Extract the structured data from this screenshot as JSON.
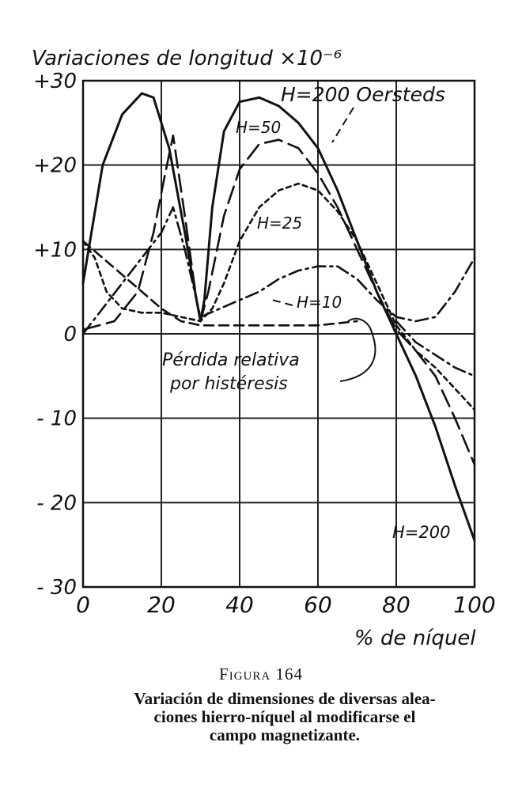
{
  "chart_data": {
    "type": "line",
    "ylabel": "Variaciones de longitud ×10⁻⁶",
    "xlabel": "% de níquel",
    "xlim": [
      0,
      100
    ],
    "ylim": [
      -30,
      30
    ],
    "x_ticks": [
      0,
      20,
      40,
      60,
      80,
      100
    ],
    "y_ticks": [
      30,
      20,
      10,
      0,
      -10,
      -20,
      -30
    ],
    "y_tick_labels": [
      "+30",
      "+20",
      "+10",
      "0",
      "- 10",
      "- 20",
      "- 30"
    ],
    "grid": true,
    "series": [
      {
        "name": "H=200 Oersteds",
        "style": "solid",
        "points": [
          [
            0,
            6
          ],
          [
            5,
            20
          ],
          [
            10,
            26
          ],
          [
            15,
            28.5
          ],
          [
            18,
            28
          ],
          [
            22,
            22
          ],
          [
            26,
            12
          ],
          [
            29,
            4
          ],
          [
            30,
            1.5
          ],
          [
            31,
            4
          ],
          [
            33,
            15
          ],
          [
            36,
            24
          ],
          [
            40,
            27.5
          ],
          [
            45,
            28
          ],
          [
            50,
            27
          ],
          [
            55,
            25
          ],
          [
            60,
            22
          ],
          [
            65,
            17
          ],
          [
            70,
            11
          ],
          [
            75,
            5
          ],
          [
            80,
            0
          ],
          [
            85,
            -5
          ],
          [
            90,
            -11
          ],
          [
            95,
            -18
          ],
          [
            100,
            -24.5
          ]
        ]
      },
      {
        "name": "H=50",
        "style": "long-dash",
        "points": [
          [
            0,
            0.5
          ],
          [
            8,
            1.5
          ],
          [
            14,
            5
          ],
          [
            18,
            12
          ],
          [
            21,
            19
          ],
          [
            23,
            23.5
          ],
          [
            26,
            14
          ],
          [
            29,
            4
          ],
          [
            30,
            1.5
          ],
          [
            32,
            5
          ],
          [
            36,
            14
          ],
          [
            40,
            19.5
          ],
          [
            45,
            22.5
          ],
          [
            50,
            23
          ],
          [
            55,
            22
          ],
          [
            60,
            19
          ],
          [
            65,
            15
          ],
          [
            70,
            10
          ],
          [
            75,
            5
          ],
          [
            80,
            0.5
          ],
          [
            85,
            -2
          ],
          [
            90,
            -5
          ],
          [
            95,
            -10
          ],
          [
            100,
            -15.5
          ]
        ]
      },
      {
        "name": "H=25",
        "style": "short-dash",
        "points": [
          [
            0,
            11
          ],
          [
            3,
            9
          ],
          [
            6,
            5
          ],
          [
            10,
            3
          ],
          [
            15,
            2.5
          ],
          [
            20,
            2.5
          ],
          [
            25,
            2
          ],
          [
            30,
            1.5
          ],
          [
            33,
            3
          ],
          [
            36,
            6
          ],
          [
            40,
            11
          ],
          [
            45,
            15
          ],
          [
            50,
            17
          ],
          [
            55,
            17.8
          ],
          [
            60,
            17
          ],
          [
            65,
            14.5
          ],
          [
            70,
            11
          ],
          [
            75,
            6
          ],
          [
            80,
            1
          ],
          [
            85,
            -2
          ],
          [
            90,
            -4
          ],
          [
            95,
            -6.5
          ],
          [
            100,
            -9
          ]
        ]
      },
      {
        "name": "H=10",
        "style": "dash-dot",
        "points": [
          [
            0,
            0
          ],
          [
            5,
            3
          ],
          [
            10,
            6
          ],
          [
            15,
            9
          ],
          [
            20,
            12
          ],
          [
            23,
            15
          ],
          [
            26,
            10
          ],
          [
            30,
            2
          ],
          [
            35,
            3
          ],
          [
            40,
            4
          ],
          [
            45,
            5
          ],
          [
            50,
            6.5
          ],
          [
            55,
            7.5
          ],
          [
            60,
            8
          ],
          [
            65,
            8
          ],
          [
            70,
            6.5
          ],
          [
            75,
            4
          ],
          [
            80,
            2
          ],
          [
            85,
            1.5
          ],
          [
            90,
            2
          ],
          [
            95,
            5
          ],
          [
            100,
            9
          ]
        ]
      },
      {
        "name": "Pérdida relativa por histéresis",
        "style": "dashed",
        "points": [
          [
            0,
            11
          ],
          [
            5,
            9
          ],
          [
            10,
            7
          ],
          [
            15,
            5
          ],
          [
            20,
            3
          ],
          [
            25,
            1.5
          ],
          [
            30,
            1
          ],
          [
            35,
            1
          ],
          [
            40,
            1
          ],
          [
            50,
            1
          ],
          [
            60,
            1
          ],
          [
            70,
            1.5
          ]
        ]
      },
      {
        "name": "H=10 (pérdida)",
        "style": "dash-dot",
        "points": [
          [
            80,
            1.5
          ],
          [
            85,
            -1
          ],
          [
            90,
            -2.5
          ],
          [
            95,
            -4
          ],
          [
            100,
            -5
          ]
        ]
      }
    ],
    "annotations": [
      {
        "text": "H=200 Oersteds"
      },
      {
        "text": "H=50"
      },
      {
        "text": "H=25"
      },
      {
        "text": "H=10"
      },
      {
        "text": "H=200"
      },
      {
        "text": "Pérdida relativa"
      },
      {
        "text": "por histéresis"
      }
    ]
  },
  "caption": {
    "figure": "Figura 164",
    "line1": "Variación de dimensiones de diversas alea-",
    "line2": "ciones hierro-níquel al modificarse el",
    "line3": "campo magnetizante."
  }
}
